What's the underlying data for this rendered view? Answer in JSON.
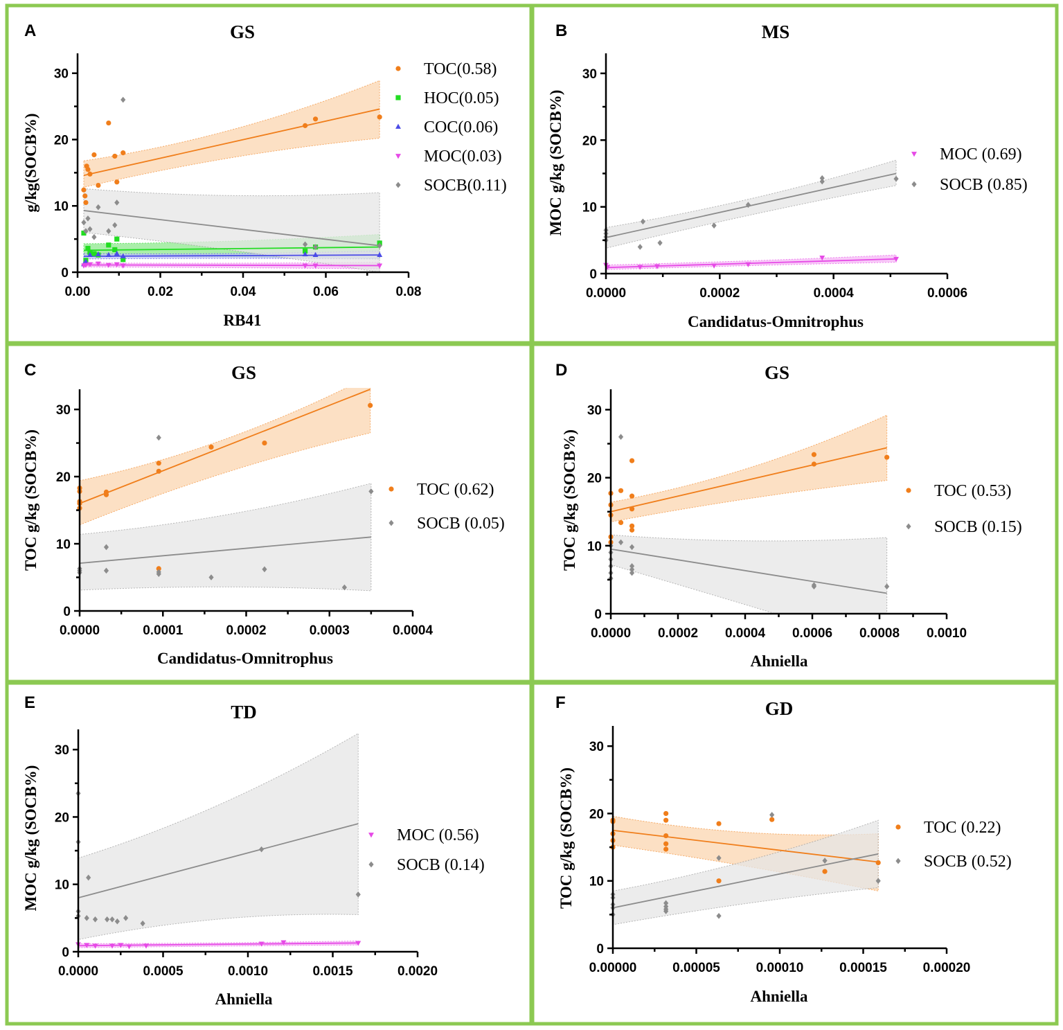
{
  "colors": {
    "border": "#8cc952",
    "TOC": "#f07e1b",
    "HOC": "#22dd22",
    "COC": "#4b4be6",
    "MOC": "#e64ae6",
    "SOCB": "#8c8c8c",
    "TOC_band": "#fbd6b0",
    "HOC_band": "#8ee88e",
    "COC_band": "#c3c3f5",
    "MOC_band": "#f5b8f5",
    "SOCB_band": "#e6e6e6"
  },
  "chart_data": [
    {
      "letter": "A",
      "type": "scatter",
      "title": "GS",
      "xlabel": "RB41",
      "ylabel": "g/kg(SOCB%)",
      "xlim": [
        0,
        0.08
      ],
      "ylim": [
        0,
        33
      ],
      "xticks": [
        "0.00",
        "0.02",
        "0.04",
        "0.06",
        "0.08"
      ],
      "yticks": [
        "0",
        "10",
        "20",
        "30"
      ],
      "series": [
        {
          "name": "TOC(0.58)",
          "key": "TOC",
          "marker": "circle",
          "x": [
            0.0015,
            0.0018,
            0.002,
            0.0022,
            0.0025,
            0.003,
            0.004,
            0.005,
            0.0075,
            0.009,
            0.0095,
            0.011,
            0.055,
            0.0575,
            0.073
          ],
          "y": [
            12.4,
            11.5,
            10.5,
            16.0,
            15.5,
            14.8,
            17.7,
            13.1,
            22.5,
            17.5,
            13.6,
            18.0,
            22.1,
            23.1,
            23.4
          ],
          "fit": [
            14.6,
            24.6
          ],
          "band_lo": [
            12.8,
            20.2
          ],
          "band_mid": [
            15.9,
            20.0
          ],
          "band_hi": [
            16.8,
            28.9
          ]
        },
        {
          "name": "HOC(0.05)",
          "key": "HOC",
          "marker": "square",
          "x": [
            0.0015,
            0.002,
            0.0025,
            0.003,
            0.004,
            0.005,
            0.0075,
            0.009,
            0.0095,
            0.011,
            0.055,
            0.0575,
            0.073
          ],
          "y": [
            5.9,
            1.8,
            3.6,
            3.0,
            2.8,
            2.6,
            4.1,
            3.4,
            5.0,
            1.9,
            3.2,
            3.8,
            4.4
          ],
          "fit": [
            3.3,
            3.8
          ],
          "band_lo": [
            2.4,
            2.0
          ],
          "band_mid": [
            2.9,
            3.2
          ],
          "band_hi": [
            4.3,
            5.7
          ]
        },
        {
          "name": "COC(0.06)",
          "key": "COC",
          "marker": "triangle",
          "x": [
            0.0015,
            0.002,
            0.003,
            0.005,
            0.0075,
            0.0095,
            0.011,
            0.055,
            0.0575,
            0.073
          ],
          "y": [
            1.2,
            1.6,
            2.6,
            2.7,
            2.6,
            2.8,
            2.4,
            2.7,
            2.6,
            2.6
          ],
          "fit": [
            2.4,
            2.6
          ],
          "band_lo": [
            2.0,
            2.0
          ],
          "band_mid": [
            2.3,
            2.4
          ],
          "band_hi": [
            2.8,
            3.2
          ]
        },
        {
          "name": "MOC(0.03)",
          "key": "MOC",
          "marker": "triangle-down",
          "x": [
            0.0015,
            0.002,
            0.003,
            0.005,
            0.0075,
            0.0095,
            0.011,
            0.055,
            0.0575,
            0.073
          ],
          "y": [
            1.0,
            1.1,
            1.2,
            1.3,
            1.1,
            1.2,
            1.0,
            1.0,
            1.0,
            1.0
          ],
          "fit": [
            1.1,
            1.0
          ],
          "band_lo": [
            0.8,
            0.5
          ],
          "band_mid": [
            0.9,
            0.8
          ],
          "band_hi": [
            1.4,
            1.5
          ]
        },
        {
          "name": "SOCB(0.11)",
          "key": "SOCB",
          "marker": "diamond",
          "x": [
            0.0015,
            0.002,
            0.0025,
            0.003,
            0.004,
            0.005,
            0.0075,
            0.009,
            0.0095,
            0.011,
            0.055,
            0.0575,
            0.073
          ],
          "y": [
            7.5,
            6.2,
            8.1,
            6.5,
            5.3,
            9.8,
            6.2,
            7.1,
            10.5,
            26.0,
            4.2,
            3.8,
            4.0
          ],
          "fit": [
            9.3,
            4.0
          ],
          "band_lo": [
            6.0,
            0
          ],
          "band_mid": [
            7.2,
            2.0
          ],
          "band_hi": [
            12.6,
            12.0
          ]
        }
      ],
      "legend": {
        "x": 0.06,
        "labels": [
          "TOC(0.58)",
          "HOC(0.05)",
          "COC(0.06)",
          "MOC(0.03)",
          "SOCB(0.11)"
        ]
      }
    },
    {
      "letter": "B",
      "type": "scatter",
      "title": "MS",
      "xlabel": "Candidatus-Omnitrophus",
      "ylabel": "MOC g/kg (SOCB%)",
      "xlim": [
        0,
        0.0006
      ],
      "ylim": [
        0,
        33
      ],
      "xticks": [
        "0.0000",
        "0.0002",
        "0.0004",
        "0.0006"
      ],
      "yticks": [
        "0",
        "10",
        "20",
        "30"
      ],
      "series": [
        {
          "name": "MOC (0.69)",
          "key": "MOC",
          "marker": "triangle-down",
          "x": [
            0,
            2.5e-06,
            6e-05,
            9e-05,
            0.00019,
            0.00025,
            0.00038,
            0.00051
          ],
          "y": [
            1.3,
            1.0,
            1.0,
            1.1,
            1.2,
            1.4,
            2.4,
            2.2
          ],
          "fit": [
            0.9,
            2.2
          ],
          "band_lo": [
            0.6,
            1.7
          ],
          "band_mid": [
            0.8,
            1.6
          ],
          "band_hi": [
            1.3,
            2.8
          ]
        },
        {
          "name": "SOCB (0.85)",
          "key": "SOCB",
          "marker": "diamond",
          "x": [
            0,
            0,
            0,
            0,
            6e-05,
            6.5e-05,
            9.5e-05,
            0.00019,
            0.00025,
            0.00038,
            0.00038,
            0.00051
          ],
          "y": [
            5.0,
            5.5,
            6.0,
            6.5,
            4.0,
            7.8,
            4.6,
            7.2,
            10.3,
            14.3,
            13.8,
            14.2
          ],
          "fit": [
            5.4,
            15.0
          ],
          "band_lo": [
            3.8,
            13.2
          ],
          "band_mid": [
            5.0,
            11.5
          ],
          "band_hi": [
            6.9,
            17.0
          ]
        }
      ],
      "legend": {
        "x": 0.0,
        "labels": [
          "MOC (0.69)",
          "SOCB (0.85)"
        ]
      }
    },
    {
      "letter": "C",
      "type": "scatter",
      "title": "GS",
      "xlabel": "Candidatus-Omnitrophus",
      "ylabel": "TOC g/kg (SOCB%)",
      "xlim": [
        0,
        0.0004
      ],
      "ylim": [
        0,
        33
      ],
      "xticks": [
        "0.0000",
        "0.0001",
        "0.0002",
        "0.0003",
        "0.0004"
      ],
      "yticks": [
        "0",
        "10",
        "20",
        "30"
      ],
      "series": [
        {
          "name": "TOC (0.62)",
          "key": "TOC",
          "marker": "circle",
          "x": [
            0,
            0,
            0,
            0,
            0,
            3.2e-05,
            3.2e-05,
            9.5e-05,
            9.5e-05,
            9.5e-05,
            0.000158,
            0.000222,
            0.000349
          ],
          "y": [
            18.3,
            17.8,
            16.3,
            15.3,
            16.0,
            17.7,
            17.3,
            22.0,
            20.8,
            6.3,
            24.4,
            25.0,
            30.6
          ],
          "fit": [
            16.0,
            33.0
          ],
          "band_lo": [
            12.8,
            26.5
          ],
          "band_mid": [
            16.5,
            25.0
          ],
          "band_hi": [
            19.4,
            35.0
          ]
        },
        {
          "name": "SOCB (0.05)",
          "key": "SOCB",
          "marker": "diamond",
          "x": [
            0,
            0,
            0,
            3.2e-05,
            3.2e-05,
            9.5e-05,
            9.5e-05,
            9.5e-05,
            0.000158,
            0.000222,
            0.000318,
            0.00035
          ],
          "y": [
            5.7,
            6.3,
            6.0,
            9.5,
            6.0,
            25.8,
            5.8,
            5.5,
            5.0,
            6.2,
            3.5,
            17.8
          ],
          "fit": [
            7.1,
            11.0
          ],
          "band_lo": [
            3.1,
            3.0
          ],
          "band_mid": [
            5.2,
            5.0
          ],
          "band_hi": [
            11.4,
            19.0
          ]
        }
      ],
      "legend": {
        "x": 0.00035,
        "labels": [
          "TOC (0.62)",
          "SOCB (0.05)"
        ]
      }
    },
    {
      "letter": "D",
      "type": "scatter",
      "title": "GS",
      "xlabel": "Ahniella",
      "ylabel": "TOC g/kg (SOCB%)",
      "xlim": [
        0,
        0.001
      ],
      "ylim": [
        0,
        33
      ],
      "xticks": [
        "0.0000",
        "0.0002",
        "0.0004",
        "0.0006",
        "0.0008",
        "0.0010"
      ],
      "yticks": [
        "0",
        "10",
        "20",
        "30"
      ],
      "series": [
        {
          "name": "TOC (0.53)",
          "key": "TOC",
          "marker": "circle",
          "x": [
            0,
            0,
            0,
            0,
            0,
            3e-05,
            3e-05,
            6.3e-05,
            6.3e-05,
            6.3e-05,
            6.3e-05,
            6.3e-05,
            0.000605,
            0.000605,
            0.000822
          ],
          "y": [
            17.7,
            16.0,
            14.5,
            11.3,
            10.5,
            18.1,
            13.4,
            22.5,
            17.3,
            15.4,
            12.9,
            12.3,
            23.4,
            22.0,
            23.0
          ],
          "fit": [
            15.0,
            24.4
          ],
          "band_lo": [
            13.5,
            19.6
          ],
          "band_mid": [
            15.0,
            19.0
          ],
          "band_hi": [
            16.4,
            29.2
          ]
        },
        {
          "name": "SOCB (0.15)",
          "key": "SOCB",
          "marker": "diamond",
          "x": [
            0,
            0,
            0,
            0,
            0,
            0,
            3e-05,
            3e-05,
            6.3e-05,
            6.3e-05,
            6.3e-05,
            6.3e-05,
            0.000605,
            0.000605,
            0.000822
          ],
          "y": [
            5.2,
            6.0,
            7.0,
            8.0,
            9.0,
            10.0,
            26.0,
            10.5,
            9.8,
            7.0,
            6.5,
            6.0,
            4.0,
            4.2,
            4.0
          ],
          "fit": [
            9.5,
            3.0
          ],
          "band_lo": [
            7.2,
            -5.0
          ],
          "band_mid": [
            7.5,
            0.0
          ],
          "band_hi": [
            11.6,
            11.2
          ]
        }
      ],
      "legend": {
        "x": 0.00085,
        "labels": [
          "TOC (0.53)",
          "SOCB (0.15)"
        ]
      }
    },
    {
      "letter": "E",
      "type": "scatter",
      "title": "TD",
      "xlabel": "Ahniella",
      "ylabel": "MOC g/kg (SOCB%)",
      "xlim": [
        0,
        0.002
      ],
      "ylim": [
        0,
        33
      ],
      "xticks": [
        "0.0000",
        "0.0005",
        "0.0010",
        "0.0015",
        "0.0020"
      ],
      "yticks": [
        "0",
        "10",
        "20",
        "30"
      ],
      "series": [
        {
          "name": "MOC (0.56)",
          "key": "MOC",
          "marker": "triangle-down",
          "x": [
            0,
            5e-05,
            0.0001,
            0.0002,
            0.00025,
            0.0003,
            0.0004,
            0.00108,
            0.00121,
            0.00165
          ],
          "y": [
            1.1,
            1.0,
            0.9,
            0.9,
            1.0,
            0.8,
            0.9,
            1.2,
            1.4,
            1.3
          ],
          "fit": [
            0.9,
            1.3
          ],
          "band_lo": [
            0.6,
            1.0
          ],
          "band_mid": [
            0.7,
            1.0
          ],
          "band_hi": [
            1.2,
            1.6
          ]
        },
        {
          "name": "SOCB (0.14)",
          "key": "SOCB",
          "marker": "diamond",
          "x": [
            0,
            0,
            0,
            0,
            5e-05,
            6e-05,
            0.0001,
            0.00017,
            0.0002,
            0.00023,
            0.00028,
            0.00038,
            0.00108,
            0.00165
          ],
          "y": [
            23.5,
            16.3,
            6.0,
            5.3,
            5.0,
            11.0,
            4.8,
            4.8,
            4.8,
            4.5,
            5.0,
            4.2,
            15.2,
            8.5
          ],
          "fit": [
            8.0,
            19.0
          ],
          "band_lo": [
            1.8,
            5.5
          ],
          "band_mid": [
            6.5,
            9.0
          ],
          "band_hi": [
            13.9,
            32.4
          ]
        }
      ],
      "legend": {
        "x": 0.0016,
        "labels": [
          "MOC (0.56)",
          "SOCB (0.14)"
        ]
      }
    },
    {
      "letter": "F",
      "type": "scatter",
      "title": "GD",
      "xlabel": "Ahniella",
      "ylabel": "TOC g/kg (SOCB%)",
      "xlim": [
        0,
        0.0002
      ],
      "ylim": [
        0,
        33
      ],
      "xticks": [
        "0.00000",
        "0.00005",
        "0.00010",
        "0.00015",
        "0.00020"
      ],
      "yticks": [
        "0",
        "10",
        "20",
        "30"
      ],
      "series": [
        {
          "name": "TOC (0.22)",
          "key": "TOC",
          "marker": "circle",
          "x": [
            0,
            0,
            0,
            0,
            0,
            3.18e-05,
            3.18e-05,
            3.18e-05,
            3.18e-05,
            3.18e-05,
            6.35e-05,
            6.35e-05,
            9.53e-05,
            0.000127,
            0.000159
          ],
          "y": [
            19.0,
            18.8,
            17.0,
            16.0,
            15.0,
            20.0,
            19.0,
            16.7,
            15.5,
            14.7,
            18.5,
            10.0,
            19.1,
            11.4,
            12.7
          ],
          "fit": [
            17.5,
            12.8
          ],
          "band_lo": [
            15.3,
            8.5
          ],
          "band_mid": [
            16.5,
            12.0
          ],
          "band_hi": [
            19.6,
            17.0
          ]
        },
        {
          "name": "SOCB (0.52)",
          "key": "SOCB",
          "marker": "diamond",
          "x": [
            0,
            0,
            0,
            0,
            0,
            3.18e-05,
            3.18e-05,
            3.18e-05,
            3.18e-05,
            6.35e-05,
            6.35e-05,
            9.53e-05,
            0.000127,
            0.000159
          ],
          "y": [
            5.0,
            6.0,
            6.5,
            7.5,
            8.0,
            6.7,
            6.2,
            5.8,
            5.5,
            4.8,
            13.4,
            19.8,
            13.0,
            10.0
          ],
          "fit": [
            6.0,
            14.0
          ],
          "band_lo": [
            3.5,
            9.0
          ],
          "band_mid": [
            5.0,
            12.0
          ],
          "band_hi": [
            8.5,
            19.0
          ]
        }
      ],
      "legend": {
        "x": 0.00017,
        "labels": [
          "TOC (0.22)",
          "SOCB (0.52)"
        ]
      }
    }
  ]
}
